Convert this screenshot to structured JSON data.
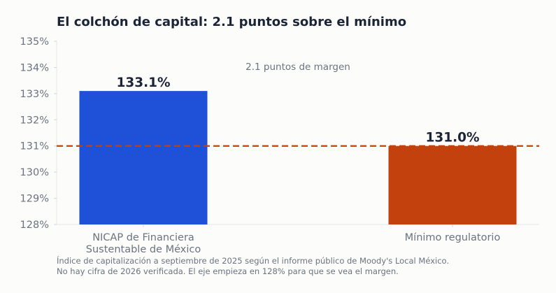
{
  "chart_data": {
    "type": "bar",
    "title": "El colchón de capital: 2.1 puntos sobre el mínimo",
    "categories": [
      [
        "NICAP de Financiera",
        "Sustentable de México"
      ],
      [
        "Mínimo regulatorio"
      ]
    ],
    "values": [
      133.1,
      131.0
    ],
    "data_labels": [
      "133.1%",
      "131.0%"
    ],
    "colors": [
      "#1f50d8",
      "#c2410c"
    ],
    "reference_line": {
      "value": 131.0,
      "color": "#c2410c",
      "style": "dashed"
    },
    "annotation": "2.1 puntos de margen",
    "ylim": [
      128,
      135
    ],
    "yticks": [
      128,
      129,
      130,
      131,
      132,
      133,
      134,
      135
    ],
    "ytick_labels": [
      "128%",
      "129%",
      "130%",
      "131%",
      "132%",
      "133%",
      "134%",
      "135%"
    ],
    "xlabel": "",
    "ylabel": "",
    "grid": false
  },
  "notes": [
    "Índice de capitalización a septiembre de 2025 según el informe público de Moody's Local México.",
    "No hay cifra de 2026 verificada. El eje empieza en 128% para que se vea el margen."
  ]
}
